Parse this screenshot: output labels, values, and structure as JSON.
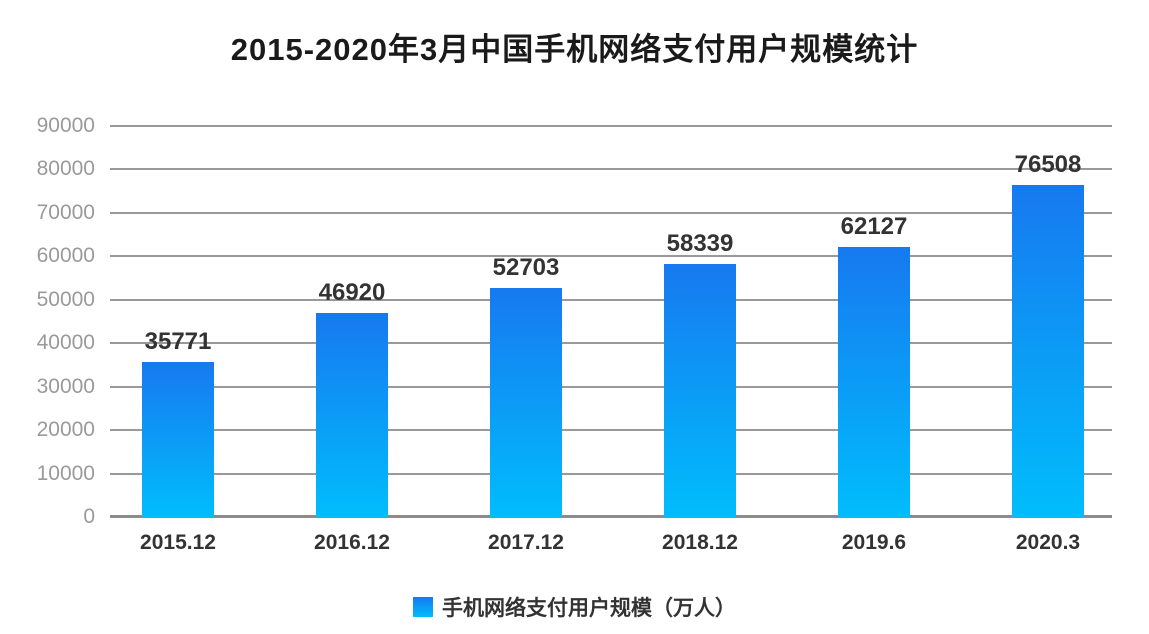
{
  "chart_data": {
    "type": "bar",
    "title": "2015-2020年3月中国手机网络支付用户规模统计",
    "categories": [
      "2015.12",
      "2016.12",
      "2017.12",
      "2018.12",
      "2019.6",
      "2020.3"
    ],
    "values": [
      35771,
      46920,
      52703,
      58339,
      62127,
      76508
    ],
    "legend": "手机网络支付用户规模（万人）",
    "legend_position": "bottom",
    "xlabel": "",
    "ylabel": "",
    "ylim": [
      0,
      90000
    ],
    "yticks": [
      0,
      10000,
      20000,
      30000,
      40000,
      50000,
      60000,
      70000,
      80000,
      90000
    ],
    "grid": true,
    "colors": {
      "bar_gradient_top": "#1779f0",
      "bar_gradient_bottom": "#00bdfc",
      "gridline": "#999999",
      "axis_line": "#8c8c8c",
      "tick_label": "#9a9a9a",
      "category_label": "#333333",
      "value_label": "#333333",
      "title": "#1a1a1a",
      "background": "#ffffff"
    }
  }
}
